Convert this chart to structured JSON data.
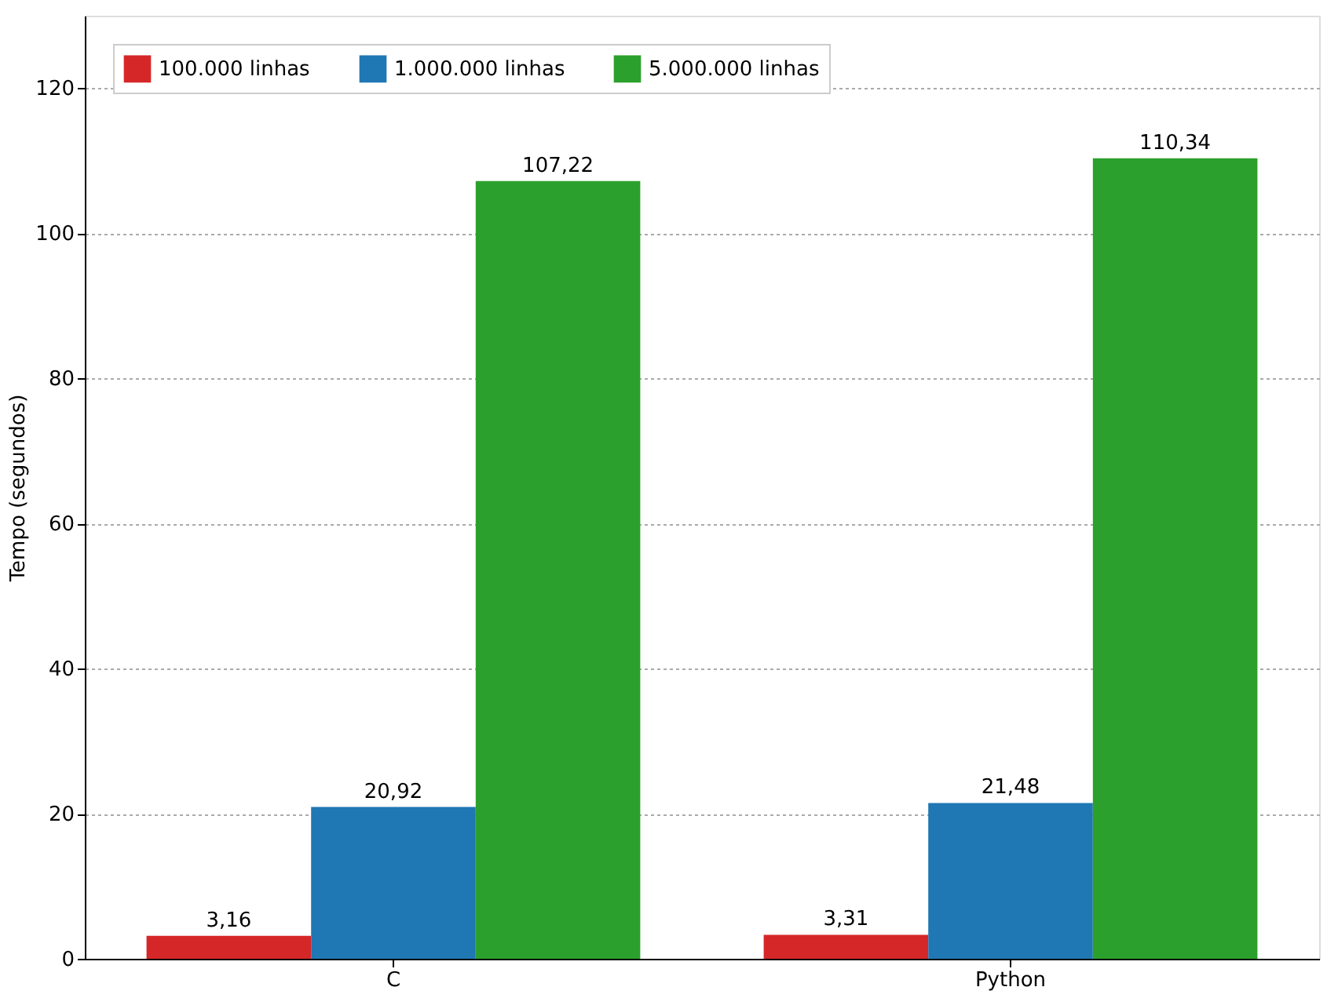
{
  "chart_data": {
    "type": "bar",
    "ylabel": "Tempo (segundos)",
    "categories": [
      "C",
      "Python"
    ],
    "series": [
      {
        "name": "100.000 linhas",
        "color": "#d62728",
        "values": [
          3.16,
          3.31
        ],
        "value_labels": [
          "3,16",
          "3,31"
        ]
      },
      {
        "name": "1.000.000 linhas",
        "color": "#1f77b4",
        "values": [
          20.92,
          21.48
        ],
        "value_labels": [
          "20,92",
          "21,48"
        ]
      },
      {
        "name": "5.000.000 linhas",
        "color": "#2ca02c",
        "values": [
          107.22,
          110.34
        ],
        "value_labels": [
          "107,22",
          "110,34"
        ]
      }
    ],
    "ylim": [
      0,
      130
    ],
    "yticks": [
      0,
      20,
      40,
      60,
      80,
      100,
      120
    ],
    "grid": "y",
    "legend": "top left"
  }
}
